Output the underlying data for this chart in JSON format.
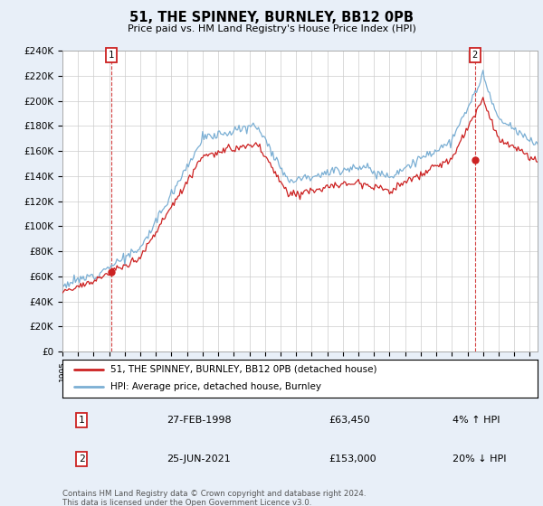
{
  "title": "51, THE SPINNEY, BURNLEY, BB12 0PB",
  "subtitle": "Price paid vs. HM Land Registry's House Price Index (HPI)",
  "hpi_color": "#7bafd4",
  "price_color": "#cc2222",
  "vline_color": "#cc2222",
  "bg_color": "#e8eff8",
  "plot_bg": "#ffffff",
  "grid_color": "#cccccc",
  "sale1_year": 1998.15,
  "sale1_price": 63450,
  "sale2_year": 2021.48,
  "sale2_price": 153000,
  "legend_label_red": "51, THE SPINNEY, BURNLEY, BB12 0PB (detached house)",
  "legend_label_blue": "HPI: Average price, detached house, Burnley",
  "table_row1": [
    "1",
    "27-FEB-1998",
    "£63,450",
    "4% ↑ HPI"
  ],
  "table_row2": [
    "2",
    "25-JUN-2021",
    "£153,000",
    "20% ↓ HPI"
  ],
  "footer": "Contains HM Land Registry data © Crown copyright and database right 2024.\nThis data is licensed under the Open Government Licence v3.0.",
  "xmin": 1995,
  "xmax": 2025.5,
  "ylim": [
    0,
    240000
  ],
  "yticks": [
    0,
    20000,
    40000,
    60000,
    80000,
    100000,
    120000,
    140000,
    160000,
    180000,
    200000,
    220000,
    240000
  ],
  "ytick_labels": [
    "£0",
    "£20K",
    "£40K",
    "£60K",
    "£80K",
    "£100K",
    "£120K",
    "£140K",
    "£160K",
    "£180K",
    "£200K",
    "£220K",
    "£240K"
  ]
}
